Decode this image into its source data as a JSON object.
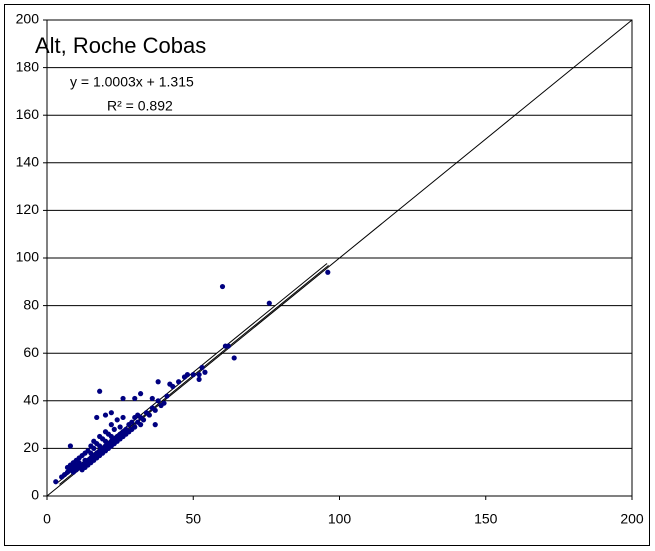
{
  "chart_data": {
    "type": "scatter",
    "title": "Alt, Roche Cobas",
    "annotations": [
      "y = 1.0003x + 1.315",
      "R² = 0.892"
    ],
    "xlim": [
      0,
      200
    ],
    "ylim": [
      0,
      200
    ],
    "xticks": [
      0,
      50,
      100,
      150,
      200
    ],
    "yticks": [
      0,
      20,
      40,
      60,
      80,
      100,
      120,
      140,
      160,
      180,
      200
    ],
    "grid": true,
    "series": [
      {
        "color": "#000080",
        "x": [
          5,
          6,
          7,
          7,
          8,
          8,
          9,
          9,
          9,
          10,
          10,
          10,
          11,
          11,
          11,
          12,
          12,
          12,
          13,
          13,
          13,
          13,
          14,
          14,
          14,
          15,
          15,
          15,
          15,
          16,
          16,
          16,
          16,
          17,
          17,
          17,
          18,
          18,
          18,
          18,
          19,
          19,
          19,
          20,
          20,
          20,
          20,
          21,
          21,
          21,
          22,
          22,
          22,
          22,
          23,
          23,
          23,
          24,
          24,
          24,
          25,
          25,
          25,
          26,
          26,
          26,
          27,
          27,
          28,
          28,
          29,
          29,
          30,
          30,
          31,
          31,
          32,
          32,
          33,
          34,
          35,
          36,
          37,
          38,
          39,
          40,
          41,
          3,
          8,
          18,
          17,
          20,
          22,
          26,
          30,
          32,
          36,
          37,
          38,
          42,
          43,
          45,
          47,
          48,
          50,
          52,
          52,
          53,
          54,
          60,
          61,
          62,
          64,
          76,
          96
        ],
        "y": [
          8,
          9,
          10,
          12,
          11,
          13,
          10,
          12,
          14,
          11,
          13,
          15,
          12,
          14,
          16,
          11,
          13,
          17,
          12,
          14,
          15,
          18,
          13,
          15,
          19,
          14,
          16,
          18,
          21,
          15,
          17,
          20,
          23,
          16,
          18,
          22,
          17,
          19,
          21,
          25,
          18,
          20,
          24,
          19,
          21,
          23,
          27,
          20,
          22,
          26,
          21,
          23,
          25,
          30,
          22,
          24,
          28,
          23,
          25,
          32,
          24,
          26,
          29,
          25,
          27,
          33,
          26,
          28,
          27,
          30,
          28,
          31,
          29,
          33,
          31,
          34,
          30,
          33,
          32,
          35,
          34,
          37,
          36,
          40,
          38,
          39,
          42,
          6,
          21,
          44,
          33,
          34,
          35,
          41,
          41,
          43,
          41,
          30,
          48,
          47,
          46,
          48,
          50,
          51,
          51,
          49,
          51,
          54,
          52,
          88,
          63,
          63,
          58,
          81,
          94
        ]
      }
    ],
    "lines": [
      {
        "color": "#000000",
        "x": [
          0,
          200
        ],
        "y": [
          0,
          200
        ]
      },
      {
        "color": "#000000",
        "x": [
          4,
          96
        ],
        "y": [
          5.3,
          97.3
        ]
      }
    ]
  }
}
